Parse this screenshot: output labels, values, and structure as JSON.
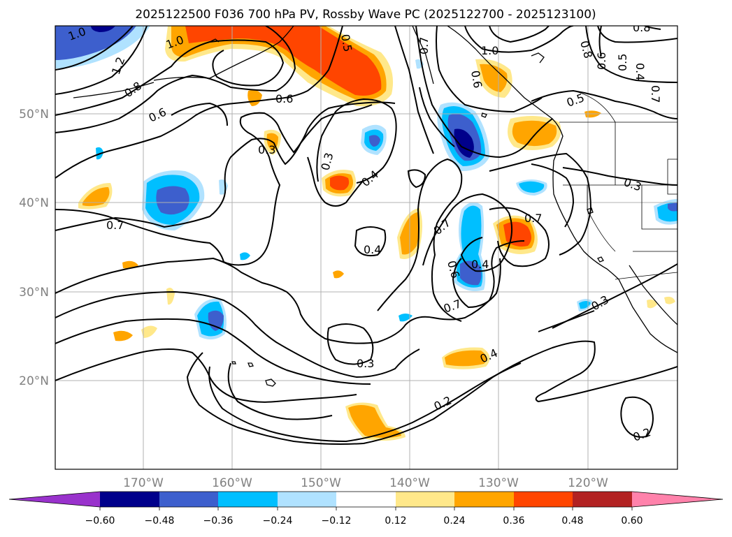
{
  "title": "2025122500 F036 700 hPa PV, Rossby Wave PC (2025122700 - 2025123100)",
  "axes": {
    "lat_labels": [
      "50°N",
      "40°N",
      "30°N",
      "20°N"
    ],
    "lon_labels": [
      "170°W",
      "160°W",
      "150°W",
      "140°W",
      "130°W",
      "120°W"
    ]
  },
  "colorbar": {
    "ticks": [
      "−0.60",
      "−0.48",
      "−0.36",
      "−0.24",
      "−0.12",
      "0.12",
      "0.24",
      "0.36",
      "0.48",
      "0.60"
    ],
    "colors": {
      "under": "#9932cc",
      "neg_060": "#00008b",
      "neg_048": "#3d5fcd",
      "neg_036": "#00bfff",
      "neg_024": "#b0e2ff",
      "neutral": "#ffffff",
      "pos_012": "#ffe88a",
      "pos_024": "#ffa500",
      "pos_036": "#ff4500",
      "pos_048": "#b22222",
      "over": "#ff82ab"
    }
  },
  "contour_labels": {
    "c1": "1.0",
    "c2": "1.2",
    "c3": "0.8",
    "c4": "0.6",
    "c5": "1.0",
    "c6": "0.6",
    "c7": "0.3",
    "c8": "0.3",
    "c9": "0.4",
    "c10": "0.7",
    "c11": "0.4",
    "c12": "0.7",
    "c13": "0.6",
    "c14": "0.4",
    "c15": "0.7",
    "c16": "0.7",
    "c17": "1.0",
    "c18": "0.5",
    "c19": "0.3",
    "c20": "0.3",
    "c21": "0.4",
    "c22": "0.2",
    "c23": "0.3",
    "c24": "0.2",
    "c25": "0.8",
    "c26": "0.6",
    "c27": "0.5",
    "c28": "0.4",
    "c29": "0.7",
    "c30": "0.8",
    "c31": "0.6",
    "c32": "0.5",
    "c33": "0.7"
  }
}
